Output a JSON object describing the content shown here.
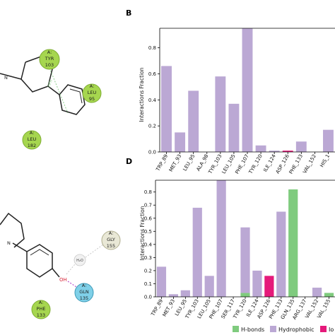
{
  "panels": {
    "b_letter": "B",
    "d_letter": "D"
  },
  "colors": {
    "h_bonds": "#7fcb7e",
    "hydrophobic": "#bba8d4",
    "ionic": "#e5197a",
    "axis": "#000000",
    "residue_green": "#a6d64f",
    "residue_blue": "#7fd0e8",
    "residue_grey": "#e9e8d6"
  },
  "legend": {
    "h_bonds": "H-bonds",
    "hydrophobic": "Hydrophobic",
    "ionic": "Io"
  },
  "diagrams": {
    "top": {
      "residues": [
        {
          "chain": "A:",
          "name": "TYR",
          "num": "103",
          "icon": "green-residue-circle"
        },
        {
          "chain": "A:",
          "name": "LEU",
          "num": "95",
          "icon": "green-residue-circle"
        },
        {
          "chain": "A:",
          "name": "LEU",
          "num": "182",
          "icon": "green-residue-circle"
        }
      ],
      "atoms": {
        "n": "N"
      }
    },
    "bottom": {
      "residues": [
        {
          "chain": "A:",
          "name": "GLY",
          "num": "155",
          "icon": "grey-residue-circle"
        },
        {
          "chain": "A:",
          "name": "GLN",
          "num": "135",
          "icon": "blue-residue-circle"
        },
        {
          "chain": "A:",
          "name": "PHE",
          "num": "133",
          "icon": "green-residue-circle"
        }
      ],
      "atoms": {
        "n": "N",
        "oh": "OH",
        "water": "H₂O"
      }
    }
  },
  "chart_data": [
    {
      "type": "bar",
      "ylabel": "Interactions Fraction",
      "ylim": [
        0,
        0.95
      ],
      "yticks": [
        "0.0",
        "0.2",
        "0.4",
        "0.6",
        "0.8"
      ],
      "categories": [
        "TRP_89",
        "MET_93",
        "LEU_95",
        "ALA_98",
        "TYR_103",
        "LEU_105",
        "PHE_107",
        "TYR_120",
        "ILE_124",
        "ASP_126",
        "PHE_133",
        "VAL_152",
        "HIS_1"
      ],
      "series": [
        {
          "key": "hydrophobic",
          "values": [
            0.66,
            0.15,
            0.47,
            0.0,
            0.58,
            0.37,
            0.95,
            0.05,
            0.01,
            0.0,
            0.08,
            0.0,
            0.17
          ]
        },
        {
          "key": "ionic",
          "values": [
            0,
            0,
            0,
            0,
            0,
            0,
            0,
            0,
            0,
            0.01,
            0,
            0,
            0
          ]
        }
      ]
    },
    {
      "type": "bar",
      "ylabel": "Interactions Fraction",
      "ylim": [
        0,
        0.89
      ],
      "yticks": [
        "0.0",
        "0.1",
        "0.2",
        "0.3",
        "0.4",
        "0.5",
        "0.6",
        "0.7",
        "0.8"
      ],
      "categories": [
        "TRP_89",
        "MET_93",
        "LEU_95",
        "TYR_103",
        "LEU_105",
        "PHE_107",
        "SER_117",
        "TYR_120",
        "ILE_124",
        "ASP_126",
        "PHE_133",
        "GLN_135",
        "ARG_137",
        "VAL_152",
        "VAL_155"
      ],
      "series": [
        {
          "key": "h_bonds",
          "values": [
            0,
            0,
            0,
            0,
            0,
            0,
            0,
            0.03,
            0,
            0,
            0,
            0.82,
            0,
            0,
            0.03
          ]
        },
        {
          "key": "hydrophobic",
          "values": [
            0.23,
            0.02,
            0.05,
            0.68,
            0.16,
            0.89,
            0,
            0.5,
            0.2,
            0,
            0.65,
            0,
            0,
            0.07,
            0
          ]
        },
        {
          "key": "ionic",
          "values": [
            0,
            0,
            0,
            0,
            0,
            0,
            0,
            0,
            0,
            0.16,
            0,
            0,
            0,
            0,
            0
          ]
        }
      ]
    }
  ]
}
